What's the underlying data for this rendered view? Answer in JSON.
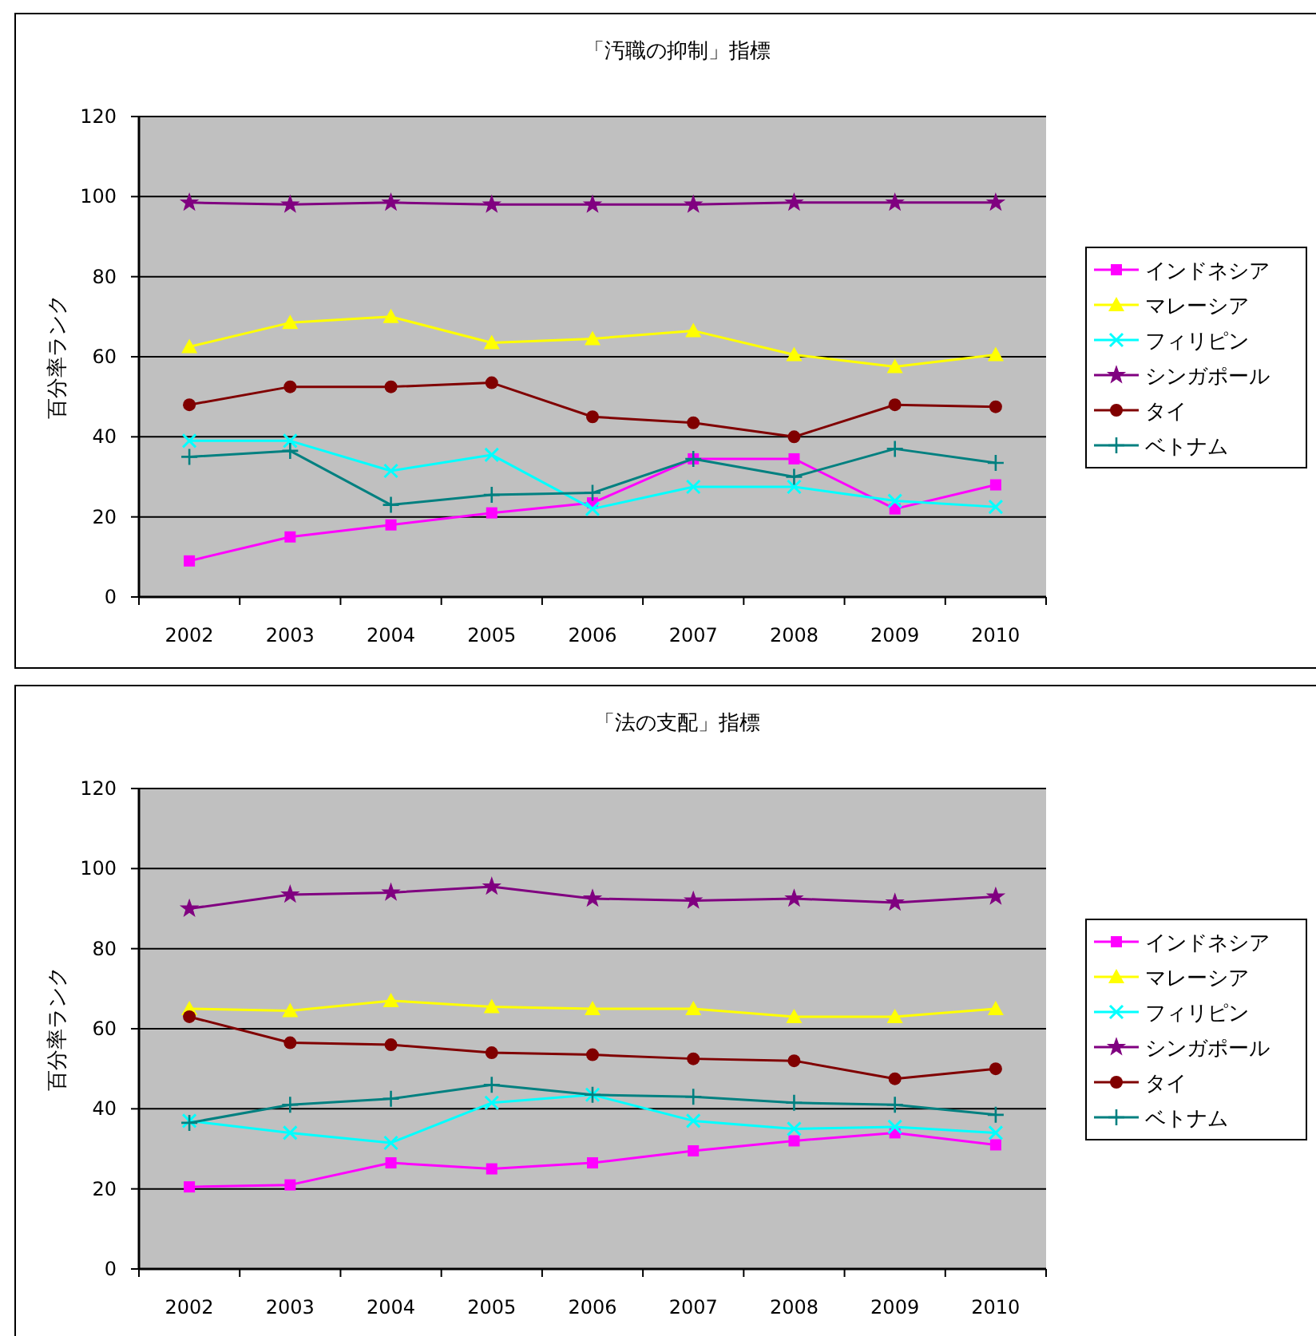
{
  "chart_data": [
    {
      "type": "line",
      "title": "「汚職の抑制」指標",
      "ylabel": "百分率ランク",
      "categories": [
        "2002",
        "2003",
        "2004",
        "2005",
        "2006",
        "2007",
        "2008",
        "2009",
        "2010"
      ],
      "ylim": [
        0,
        120
      ],
      "yticks": [
        0,
        20,
        40,
        60,
        80,
        100,
        120
      ],
      "grid": "y",
      "legend": "right",
      "series": [
        {
          "name": "インドネシア",
          "color": "#ff00ff",
          "marker": "square",
          "values": [
            9,
            15,
            18,
            21,
            23.5,
            34.5,
            34.5,
            22,
            28
          ]
        },
        {
          "name": "マレーシア",
          "color": "#ffff00",
          "marker": "triangle",
          "values": [
            62.5,
            68.5,
            70,
            63.5,
            64.5,
            66.5,
            60.5,
            57.5,
            60.5
          ]
        },
        {
          "name": "フィリピン",
          "color": "#00ffff",
          "marker": "cross",
          "values": [
            39,
            39,
            31.5,
            35.5,
            22,
            27.5,
            27.5,
            24,
            22.5
          ]
        },
        {
          "name": "シンガポール",
          "color": "#800080",
          "marker": "star",
          "values": [
            98.5,
            98,
            98.5,
            98,
            98,
            98,
            98.5,
            98.5,
            98.5
          ]
        },
        {
          "name": "タイ",
          "color": "#800000",
          "marker": "circle",
          "values": [
            48,
            52.5,
            52.5,
            53.5,
            45,
            43.5,
            40,
            48,
            47.5
          ]
        },
        {
          "name": "ベトナム",
          "color": "#008080",
          "marker": "plus",
          "values": [
            35,
            36.5,
            23,
            25.5,
            26,
            34.5,
            30,
            37,
            33.5
          ]
        }
      ]
    },
    {
      "type": "line",
      "title": "「法の支配」指標",
      "ylabel": "百分率ランク",
      "categories": [
        "2002",
        "2003",
        "2004",
        "2005",
        "2006",
        "2007",
        "2008",
        "2009",
        "2010"
      ],
      "ylim": [
        0,
        120
      ],
      "yticks": [
        0,
        20,
        40,
        60,
        80,
        100,
        120
      ],
      "grid": "y",
      "legend": "right",
      "series": [
        {
          "name": "インドネシア",
          "color": "#ff00ff",
          "marker": "square",
          "values": [
            20.5,
            21,
            26.5,
            25,
            26.5,
            29.5,
            32,
            34,
            31
          ]
        },
        {
          "name": "マレーシア",
          "color": "#ffff00",
          "marker": "triangle",
          "values": [
            65,
            64.5,
            67,
            65.5,
            65,
            65,
            63,
            63,
            65
          ]
        },
        {
          "name": "フィリピン",
          "color": "#00ffff",
          "marker": "cross",
          "values": [
            37,
            34,
            31.5,
            41.5,
            43.5,
            37,
            35,
            35.5,
            34
          ]
        },
        {
          "name": "シンガポール",
          "color": "#800080",
          "marker": "star",
          "values": [
            90,
            93.5,
            94,
            95.5,
            92.5,
            92,
            92.5,
            91.5,
            93
          ]
        },
        {
          "name": "タイ",
          "color": "#800000",
          "marker": "circle",
          "values": [
            63,
            56.5,
            56,
            54,
            53.5,
            52.5,
            52,
            47.5,
            50
          ]
        },
        {
          "name": "ベトナム",
          "color": "#008080",
          "marker": "plus",
          "values": [
            36.5,
            41,
            42.5,
            46,
            43.5,
            43,
            41.5,
            41,
            38.5
          ]
        }
      ]
    }
  ]
}
